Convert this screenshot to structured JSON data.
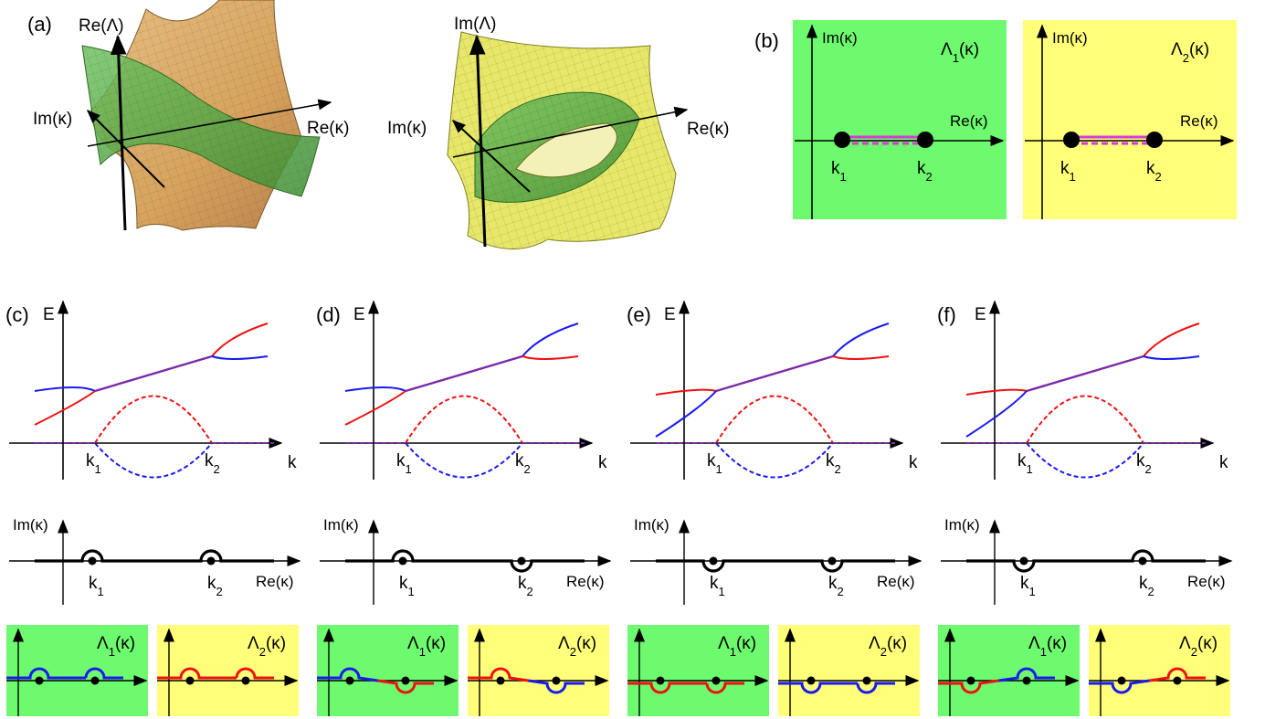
{
  "colors": {
    "sheet1": "#6efa6e",
    "sheet2": "#ffff7a",
    "branch_red": "#ee1111",
    "branch_blue": "#1a1aee",
    "cut": "#d63bd6",
    "surface_tan": "#d9ab68",
    "surface_yellow": "#e9ea6c",
    "surface_green": "#4aa43e"
  },
  "panel_a": {
    "label": "(a)",
    "left": {
      "vertical_axis": "Re(Λ)",
      "axis_imk": "Im(κ)",
      "axis_rek": "Re(κ)"
    },
    "right": {
      "vertical_axis": "Im(Λ)",
      "axis_imk": "Im(κ)",
      "axis_rek": "Re(κ)"
    }
  },
  "panel_b": {
    "label": "(b)",
    "sheets": [
      {
        "title": "Λ1(κ)",
        "y_axis": "Im(κ)",
        "x_axis": "Re(κ)",
        "points": [
          "k1",
          "k2"
        ]
      },
      {
        "title": "Λ2(κ)",
        "y_axis": "Im(κ)",
        "x_axis": "Re(κ)",
        "points": [
          "k1",
          "k2"
        ]
      }
    ]
  },
  "dispersion_panels": [
    {
      "label": "(c)",
      "y_axis": "E",
      "x_axis": "k",
      "k_labels": [
        "k1",
        "k2"
      ],
      "left_upper": "blue",
      "right_upper": "red",
      "contour": {
        "y_axis": "Im(κ)",
        "x_axis": "Re(κ)",
        "k1_detour": "above",
        "k2_detour": "above"
      },
      "sheets": [
        {
          "title": "Λ1(κ)",
          "contour": "blue-above-both"
        },
        {
          "title": "Λ2(κ)",
          "contour": "red-above-both"
        }
      ]
    },
    {
      "label": "(d)",
      "y_axis": "E",
      "x_axis": "k",
      "k_labels": [
        "k1",
        "k2"
      ],
      "left_upper": "blue",
      "right_upper": "blue",
      "contour": {
        "y_axis": "Im(κ)",
        "x_axis": "Re(κ)",
        "k1_detour": "above",
        "k2_detour": "below"
      },
      "sheets": [
        {
          "title": "Λ1(κ)",
          "contour": "blue-above-then-red-below"
        },
        {
          "title": "Λ2(κ)",
          "contour": "red-above-then-blue-below"
        }
      ]
    },
    {
      "label": "(e)",
      "y_axis": "E",
      "x_axis": "k",
      "k_labels": [
        "k1",
        "k2"
      ],
      "left_upper": "red",
      "right_upper": "blue",
      "contour": {
        "y_axis": "Im(κ)",
        "x_axis": "Re(κ)",
        "k1_detour": "below",
        "k2_detour": "below"
      },
      "sheets": [
        {
          "title": "Λ1(κ)",
          "contour": "red-below-both"
        },
        {
          "title": "Λ2(κ)",
          "contour": "blue-below-both"
        }
      ]
    },
    {
      "label": "(f)",
      "y_axis": "E",
      "x_axis": "k",
      "k_labels": [
        "k1",
        "k2"
      ],
      "left_upper": "red",
      "right_upper": "red",
      "contour": {
        "y_axis": "Im(κ)",
        "x_axis": "Re(κ)",
        "k1_detour": "below",
        "k2_detour": "above"
      },
      "sheets": [
        {
          "title": "Λ1(κ)",
          "contour": "red-below-then-blue-above"
        },
        {
          "title": "Λ2(κ)",
          "contour": "blue-below-then-red-above"
        }
      ]
    }
  ]
}
